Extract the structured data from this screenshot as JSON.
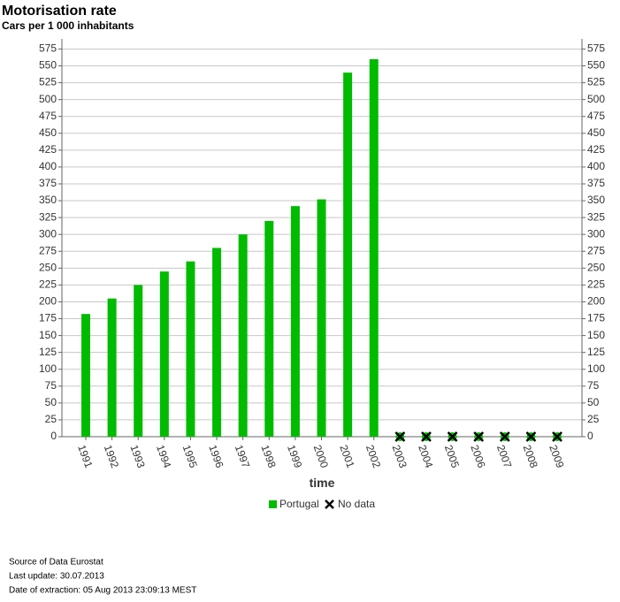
{
  "chart_data": {
    "type": "bar",
    "title": "Motorisation rate",
    "subtitle": "Cars per 1 000 inhabitants",
    "x_label": "time",
    "categories": [
      "1991",
      "1992",
      "1993",
      "1994",
      "1995",
      "1996",
      "1997",
      "1998",
      "1999",
      "2000",
      "2001",
      "2002",
      "2003",
      "2004",
      "2005",
      "2006",
      "2007",
      "2008",
      "2009"
    ],
    "series": [
      {
        "name": "Portugal",
        "color": "#00bb00",
        "values": [
          182,
          205,
          225,
          245,
          260,
          280,
          300,
          320,
          342,
          352,
          540,
          560,
          null,
          null,
          null,
          null,
          null,
          null,
          null
        ]
      }
    ],
    "no_data_label": "No data",
    "ylim": [
      0,
      590
    ],
    "yticks": [
      0,
      25,
      50,
      75,
      100,
      125,
      150,
      175,
      200,
      225,
      250,
      275,
      300,
      325,
      350,
      375,
      400,
      425,
      450,
      475,
      500,
      525,
      550,
      575
    ],
    "grid": true,
    "footer": [
      "Source of Data Eurostat",
      "Last update: 30.07.2013",
      "Date of extraction: 05 Aug 2013 23:09:13 MEST"
    ]
  }
}
